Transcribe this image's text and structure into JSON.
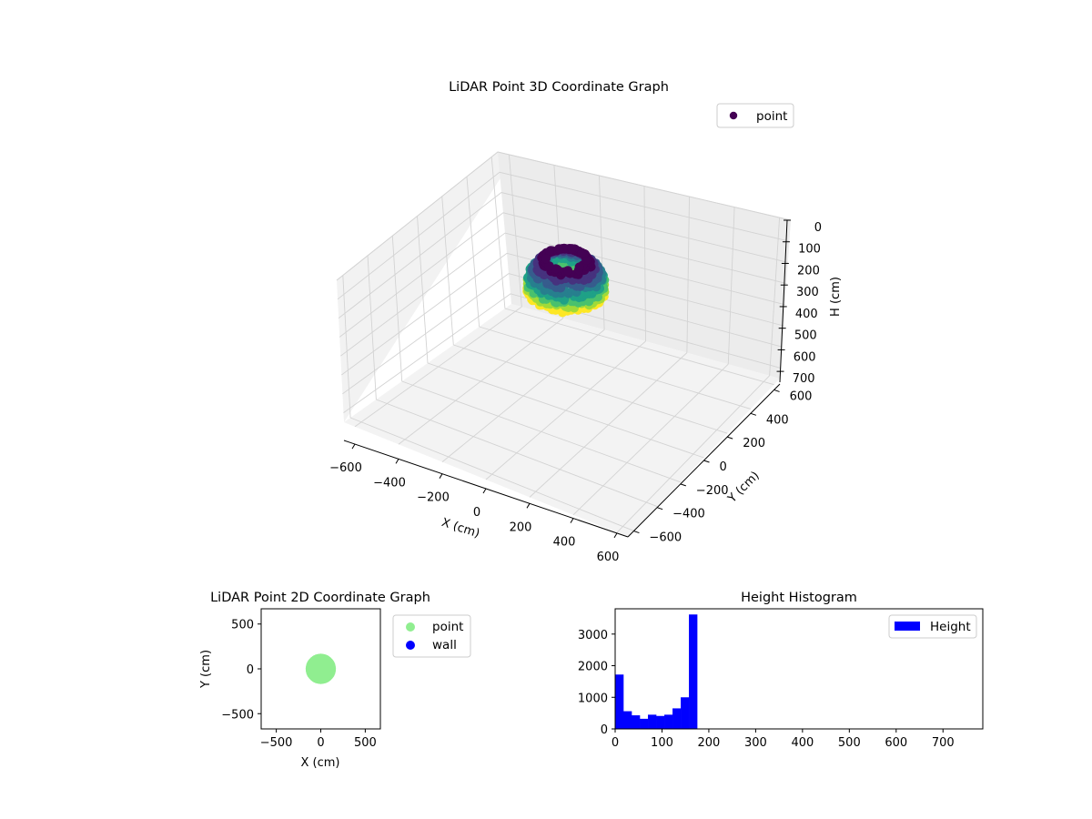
{
  "colors": {
    "viridis": [
      "#440154",
      "#46327e",
      "#365c8d",
      "#277f8e",
      "#1fa187",
      "#4ac16d",
      "#a0da39",
      "#fde725"
    ],
    "point_2d": "#90ee90",
    "wall_2d": "#0000ff",
    "hist_bar": "#0000ff",
    "pane_back": "#f2f2f2",
    "pane_side": "#e6e6e6",
    "pane_floor": "#ebebeb"
  },
  "chart_data": [
    {
      "type": "scatter",
      "title": "LiDAR Point 3D Coordinate Graph",
      "xlabel": "X (cm)",
      "ylabel": "Y (cm)",
      "zlabel": "H (cm)",
      "xticks": [
        "−600",
        "−400",
        "−200",
        "0",
        "200",
        "400",
        "600"
      ],
      "yticks": [
        "−600",
        "−400",
        "−200",
        "0",
        "200",
        "400",
        "600"
      ],
      "zticks": [
        "0",
        "100",
        "200",
        "300",
        "400",
        "500",
        "600",
        "700"
      ],
      "xlim": [
        -650,
        650
      ],
      "ylim": [
        -650,
        650
      ],
      "zlim": [
        0,
        750
      ],
      "z_inverted": true,
      "grid": true,
      "legend": {
        "position": "top-right",
        "entries": [
          "point"
        ]
      },
      "cloud": {
        "center_x": 0,
        "center_y": 0,
        "radius_cm": 160,
        "h_min": 0,
        "h_max": 170
      }
    },
    {
      "type": "scatter",
      "title": "LiDAR Point 2D Coordinate Graph",
      "xlabel": "X (cm)",
      "ylabel": "Y (cm)",
      "xticks": [
        "−500",
        "0",
        "500"
      ],
      "yticks": [
        "−500",
        "0",
        "500"
      ],
      "xlim": [
        -670,
        670
      ],
      "ylim": [
        -670,
        670
      ],
      "legend": {
        "position": "outside right",
        "entries": [
          "point",
          "wall"
        ]
      },
      "series": [
        {
          "name": "point",
          "center": [
            0,
            0
          ],
          "radius": 160
        },
        {
          "name": "wall",
          "points": []
        }
      ]
    },
    {
      "type": "bar",
      "title": "Height Histogram",
      "xticks": [
        "0",
        "100",
        "200",
        "300",
        "400",
        "500",
        "600",
        "700"
      ],
      "yticks": [
        "0",
        "1000",
        "2000",
        "3000"
      ],
      "xlim": [
        0,
        785
      ],
      "ylim": [
        0,
        3800
      ],
      "bin_width": 17.5,
      "bin_starts": [
        0,
        17.5,
        35,
        52.5,
        70,
        87.5,
        105,
        122.5,
        140,
        157.5
      ],
      "values": [
        1720,
        560,
        430,
        320,
        450,
        410,
        450,
        650,
        1000,
        3620
      ],
      "legend": {
        "position": "top-right",
        "entries": [
          "Height"
        ]
      }
    }
  ]
}
